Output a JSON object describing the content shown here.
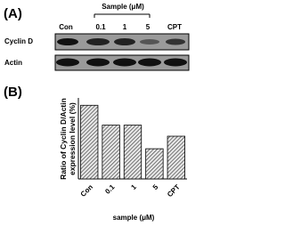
{
  "panel_a": {
    "label": "(A)",
    "group_label": "Sample (μM)",
    "lanes": [
      "Con",
      "0.1",
      "1",
      "5",
      "CPT"
    ],
    "rows": [
      "Cyclin D",
      "Actin"
    ]
  },
  "chart_data": {
    "type": "bar",
    "panel_label": "(B)",
    "y_label": "Ratio of Cyclin D/Actin expression level (%)",
    "x_label": "sample (μM)",
    "categories": [
      "Con",
      "0.1",
      "1",
      "5",
      "CPT"
    ],
    "values": [
      100,
      73,
      73,
      41,
      58
    ],
    "color": "#444444",
    "ylim": [
      0,
      110
    ]
  }
}
